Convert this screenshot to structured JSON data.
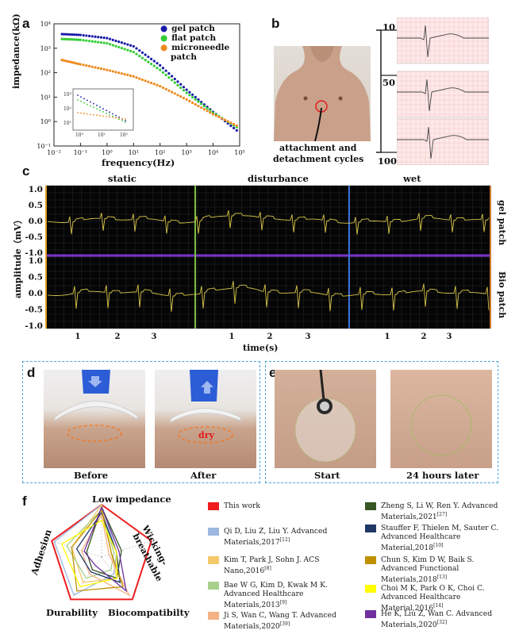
{
  "panel_labels": {
    "a": "a",
    "b": "b",
    "c": "c",
    "d": "d",
    "e": "e",
    "f": "f"
  },
  "colors": {
    "gel": "#1a1aa8",
    "flat": "#33cc33",
    "micro": "#f08a1e",
    "ecg_bg": "#050505",
    "ecg_line": "#d9c64a",
    "divider": "#7a32c8",
    "this_work": "#ee1c1c"
  },
  "panel_a": {
    "ylabel": "impedance(kΩ)",
    "xlabel": "frequency(Hz)",
    "yticks": [
      "10⁴",
      "10³",
      "10²",
      "10¹",
      "10⁰",
      "10⁻¹"
    ],
    "xticks": [
      "10⁻²",
      "10⁻¹",
      "10⁰",
      "10¹",
      "10²",
      "10³",
      "10⁴",
      "10⁵"
    ],
    "legend": [
      "gel patch",
      "flat patch",
      "microneedle",
      "patch"
    ],
    "inset_yticks": [
      "10³",
      "10²",
      "10¹"
    ],
    "inset_xticks": [
      "10⁰",
      "10¹",
      "10²"
    ]
  },
  "chart_data": {
    "type": "scatter",
    "xlabel": "frequency(Hz)",
    "ylabel": "impedance(kΩ)",
    "xscale": "log",
    "yscale": "log",
    "xlim": [
      0.01,
      100000
    ],
    "ylim": [
      0.1,
      10000
    ],
    "series": [
      {
        "name": "gel patch",
        "x": [
          0.02,
          0.1,
          1,
          10,
          100,
          1000,
          10000,
          100000
        ],
        "y": [
          3800,
          3500,
          2600,
          1200,
          200,
          20,
          2.5,
          0.35
        ]
      },
      {
        "name": "flat patch",
        "x": [
          0.02,
          0.1,
          1,
          10,
          100,
          1000,
          10000,
          100000
        ],
        "y": [
          2400,
          2200,
          1600,
          700,
          130,
          15,
          2.3,
          0.5
        ]
      },
      {
        "name": "microneedle patch",
        "x": [
          0.02,
          0.1,
          1,
          10,
          100,
          1000,
          10000,
          100000
        ],
        "y": [
          330,
          220,
          130,
          70,
          28,
          8,
          2,
          0.6
        ]
      }
    ]
  },
  "panel_b": {
    "caption1": "attachment and",
    "caption2": "detachment cycles",
    "cycles": [
      "10",
      "50",
      "100"
    ]
  },
  "panel_c": {
    "segments": [
      "static",
      "disturbance",
      "wet"
    ],
    "ylabel": "amplitude（mV）",
    "xlabel": "time(s)",
    "yticks": [
      "1.0",
      "0.5",
      "0.0",
      "-0.5",
      "-1.0"
    ],
    "xticks": [
      "1",
      "2",
      "3"
    ],
    "right_labels": [
      "gel patch",
      "Bio patch"
    ]
  },
  "panel_d": {
    "before": "Before",
    "after": "After",
    "dry": "dry"
  },
  "panel_e": {
    "start": "Start",
    "later": "24 hours later"
  },
  "panel_f": {
    "axes": [
      "Low impedance",
      "Wicking-",
      "breathable",
      "Biocompatibilty",
      "Durability",
      "Adhesion"
    ],
    "legend": [
      {
        "color": "#ee1c1c",
        "text": "This work"
      },
      {
        "color": "#9cb8e0",
        "text": "Qi D, Liu Z, Liu Y. Advanced Materials,2017",
        "ref": "[12]"
      },
      {
        "color": "#f5c86a",
        "text": "Kim T, Park J, Sohn J. ACS Nano,2016",
        "ref": "[8]"
      },
      {
        "color": "#a8d08d",
        "text": "Bae W G, Kim D, Kwak M K. Advanced Healthcare Materials,2013",
        "ref": "[9]"
      },
      {
        "color": "#f4b183",
        "text": "Ji S, Wan C, Wang T. Advanced Materials,2020",
        "ref": "[39]"
      },
      {
        "color": "#375623",
        "text": "Zheng S, Li W, Ren Y. Advanced Materials,2021",
        "ref": "[27]"
      },
      {
        "color": "#1f3864",
        "text": "Stauffer F, Thielen M, Sauter C. Advanced Healthcare Material,2018",
        "ref": "[10]"
      },
      {
        "color": "#bf9000",
        "text": "Chun S, Kim D W, Baik S. Advanced Functional Materials,2018",
        "ref": "[13]"
      },
      {
        "color": "#ffff00",
        "text": "Choi M K, Park O K, Choi C. Advanced Healthcare Material,2016",
        "ref": "[14]"
      },
      {
        "color": "#7030a0",
        "text": "He K, Liu Z, Wan C. Advanced Materials,2020",
        "ref": "[32]"
      }
    ]
  }
}
